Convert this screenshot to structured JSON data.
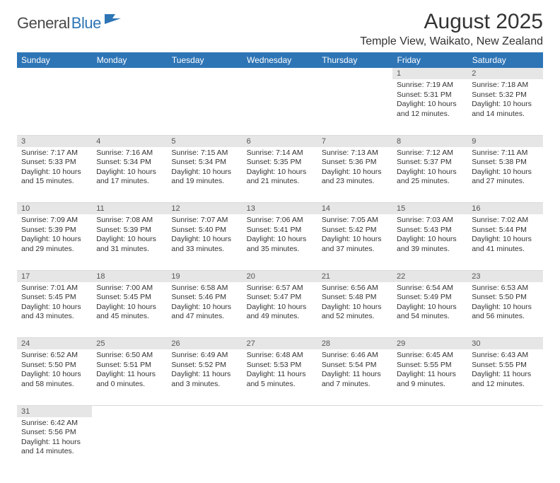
{
  "logo": {
    "part1": "General",
    "part2": "Blue"
  },
  "title": "August 2025",
  "location": "Temple View, Waikato, New Zealand",
  "colors": {
    "header_bg": "#2e75b6",
    "header_fg": "#ffffff",
    "daynum_bg": "#e6e6e6",
    "grid_line": "#d9d9d9",
    "text": "#333333",
    "logo_dark": "#4a4a4a",
    "logo_blue": "#2e75b6"
  },
  "weekdays": [
    "Sunday",
    "Monday",
    "Tuesday",
    "Wednesday",
    "Thursday",
    "Friday",
    "Saturday"
  ],
  "lead_blanks": 5,
  "days": [
    {
      "n": 1,
      "sr": "7:19 AM",
      "ss": "5:31 PM",
      "dh": 10,
      "dm": 12
    },
    {
      "n": 2,
      "sr": "7:18 AM",
      "ss": "5:32 PM",
      "dh": 10,
      "dm": 14
    },
    {
      "n": 3,
      "sr": "7:17 AM",
      "ss": "5:33 PM",
      "dh": 10,
      "dm": 15
    },
    {
      "n": 4,
      "sr": "7:16 AM",
      "ss": "5:34 PM",
      "dh": 10,
      "dm": 17
    },
    {
      "n": 5,
      "sr": "7:15 AM",
      "ss": "5:34 PM",
      "dh": 10,
      "dm": 19
    },
    {
      "n": 6,
      "sr": "7:14 AM",
      "ss": "5:35 PM",
      "dh": 10,
      "dm": 21
    },
    {
      "n": 7,
      "sr": "7:13 AM",
      "ss": "5:36 PM",
      "dh": 10,
      "dm": 23
    },
    {
      "n": 8,
      "sr": "7:12 AM",
      "ss": "5:37 PM",
      "dh": 10,
      "dm": 25
    },
    {
      "n": 9,
      "sr": "7:11 AM",
      "ss": "5:38 PM",
      "dh": 10,
      "dm": 27
    },
    {
      "n": 10,
      "sr": "7:09 AM",
      "ss": "5:39 PM",
      "dh": 10,
      "dm": 29
    },
    {
      "n": 11,
      "sr": "7:08 AM",
      "ss": "5:39 PM",
      "dh": 10,
      "dm": 31
    },
    {
      "n": 12,
      "sr": "7:07 AM",
      "ss": "5:40 PM",
      "dh": 10,
      "dm": 33
    },
    {
      "n": 13,
      "sr": "7:06 AM",
      "ss": "5:41 PM",
      "dh": 10,
      "dm": 35
    },
    {
      "n": 14,
      "sr": "7:05 AM",
      "ss": "5:42 PM",
      "dh": 10,
      "dm": 37
    },
    {
      "n": 15,
      "sr": "7:03 AM",
      "ss": "5:43 PM",
      "dh": 10,
      "dm": 39
    },
    {
      "n": 16,
      "sr": "7:02 AM",
      "ss": "5:44 PM",
      "dh": 10,
      "dm": 41
    },
    {
      "n": 17,
      "sr": "7:01 AM",
      "ss": "5:45 PM",
      "dh": 10,
      "dm": 43
    },
    {
      "n": 18,
      "sr": "7:00 AM",
      "ss": "5:45 PM",
      "dh": 10,
      "dm": 45
    },
    {
      "n": 19,
      "sr": "6:58 AM",
      "ss": "5:46 PM",
      "dh": 10,
      "dm": 47
    },
    {
      "n": 20,
      "sr": "6:57 AM",
      "ss": "5:47 PM",
      "dh": 10,
      "dm": 49
    },
    {
      "n": 21,
      "sr": "6:56 AM",
      "ss": "5:48 PM",
      "dh": 10,
      "dm": 52
    },
    {
      "n": 22,
      "sr": "6:54 AM",
      "ss": "5:49 PM",
      "dh": 10,
      "dm": 54
    },
    {
      "n": 23,
      "sr": "6:53 AM",
      "ss": "5:50 PM",
      "dh": 10,
      "dm": 56
    },
    {
      "n": 24,
      "sr": "6:52 AM",
      "ss": "5:50 PM",
      "dh": 10,
      "dm": 58
    },
    {
      "n": 25,
      "sr": "6:50 AM",
      "ss": "5:51 PM",
      "dh": 11,
      "dm": 0
    },
    {
      "n": 26,
      "sr": "6:49 AM",
      "ss": "5:52 PM",
      "dh": 11,
      "dm": 3
    },
    {
      "n": 27,
      "sr": "6:48 AM",
      "ss": "5:53 PM",
      "dh": 11,
      "dm": 5
    },
    {
      "n": 28,
      "sr": "6:46 AM",
      "ss": "5:54 PM",
      "dh": 11,
      "dm": 7
    },
    {
      "n": 29,
      "sr": "6:45 AM",
      "ss": "5:55 PM",
      "dh": 11,
      "dm": 9
    },
    {
      "n": 30,
      "sr": "6:43 AM",
      "ss": "5:55 PM",
      "dh": 11,
      "dm": 12
    },
    {
      "n": 31,
      "sr": "6:42 AM",
      "ss": "5:56 PM",
      "dh": 11,
      "dm": 14
    }
  ],
  "labels": {
    "sunrise": "Sunrise:",
    "sunset": "Sunset:",
    "daylight": "Daylight:",
    "hours": "hours",
    "and": "and",
    "minutes": "minutes."
  }
}
